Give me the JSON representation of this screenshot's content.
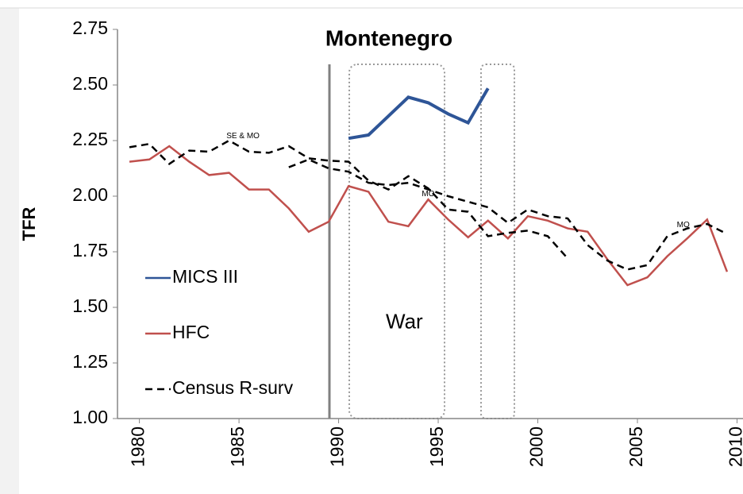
{
  "chart_data": {
    "type": "line",
    "title": "Montenegro",
    "y_label": "TFR",
    "xlim": [
      1978.9,
      2010.3
    ],
    "xticks": [
      1980,
      1985,
      1990,
      1995,
      2000,
      2005,
      2010
    ],
    "ylim": [
      1.0,
      2.75
    ],
    "yticks": [
      {
        "value": 1.0,
        "label": "1.00"
      },
      {
        "value": 1.25,
        "label": "1.25"
      },
      {
        "value": 1.5,
        "label": "1.50"
      },
      {
        "value": 1.75,
        "label": "1.75"
      },
      {
        "value": 2.0,
        "label": "2.00"
      },
      {
        "value": 2.25,
        "label": "2.25"
      },
      {
        "value": 2.5,
        "label": "2.50"
      },
      {
        "value": 2.75,
        "label": "2.75"
      }
    ],
    "series": [
      {
        "name": "MICS III",
        "color": "#2e5597",
        "dash": false,
        "x": [
          1990.5,
          1991.5,
          1992.5,
          1993.5,
          1994.5,
          1995.5,
          1996.5,
          1997.5
        ],
        "values": [
          2.26,
          2.275,
          2.36,
          2.445,
          2.42,
          2.37,
          2.33,
          2.485
        ]
      },
      {
        "name": "HFC",
        "color": "#c0504d",
        "dash": false,
        "x": [
          1979.5,
          1980.5,
          1981.5,
          1982.5,
          1983.5,
          1984.5,
          1985.5,
          1986.5,
          1987.5,
          1988.5,
          1989.5,
          1990.5,
          1991.5,
          1992.5,
          1993.5,
          1994.5,
          1995.5,
          1996.5,
          1997.5,
          1998.5,
          1999.5,
          2000.5,
          2001.5,
          2002.5,
          2003.5,
          2004.5,
          2005.5,
          2006.5,
          2007.5,
          2008.5,
          2009.5
        ],
        "values": [
          2.155,
          2.165,
          2.225,
          2.155,
          2.095,
          2.105,
          2.03,
          2.03,
          1.945,
          1.84,
          1.885,
          2.045,
          2.02,
          1.885,
          1.865,
          1.985,
          1.895,
          1.815,
          1.89,
          1.81,
          1.91,
          1.89,
          1.855,
          1.84,
          1.715,
          1.6,
          1.635,
          1.73,
          1.81,
          1.895,
          1.66
        ]
      },
      {
        "name": "Census R-surv",
        "color": "#000000",
        "dash": true,
        "x": [
          1979.5,
          1980.5,
          1981.5,
          1982.5,
          1983.5,
          1984.5,
          1985.5,
          1986.5,
          1987.5,
          1988.5,
          1989.5,
          1990.5,
          1991.5,
          1992.5,
          1993.5,
          1994.5,
          1995.5,
          1996.5,
          1997.5,
          1998.5,
          1999.5,
          2000.5,
          2001.5
        ],
        "values": [
          2.22,
          2.235,
          2.145,
          2.205,
          2.2,
          2.25,
          2.2,
          2.195,
          2.225,
          2.17,
          2.16,
          2.155,
          2.07,
          2.03,
          2.09,
          2.035,
          1.94,
          1.93,
          1.82,
          1.835,
          1.845,
          1.82,
          1.72
        ]
      },
      {
        "color": "#000000",
        "dash": true,
        "x": [
          1987.5,
          1988.5,
          1989.5,
          1990.5,
          1991.5,
          1992.5,
          1993.5,
          1994.5,
          1995.5,
          1996.5,
          1997.5,
          1998.5,
          1999.5,
          2000.5,
          2001.5,
          2002.5,
          2003.5,
          2004.5,
          2005.5,
          2006.5,
          2007.5,
          2008.5,
          2009.5
        ],
        "values": [
          2.13,
          2.165,
          2.125,
          2.11,
          2.06,
          2.05,
          2.06,
          2.03,
          2.0,
          1.975,
          1.95,
          1.88,
          1.94,
          1.91,
          1.9,
          1.78,
          1.71,
          1.67,
          1.69,
          1.82,
          1.855,
          1.875,
          1.83
        ]
      }
    ],
    "annotations": [
      {
        "text": "SE & MO",
        "x": 1985.2,
        "y": 2.27
      },
      {
        "text": "MO",
        "x": 1994.5,
        "y": 2.01
      },
      {
        "text": "MO",
        "x": 2007.3,
        "y": 1.87
      },
      {
        "text": "War",
        "x": 1993.3,
        "y": 1.43
      }
    ]
  }
}
